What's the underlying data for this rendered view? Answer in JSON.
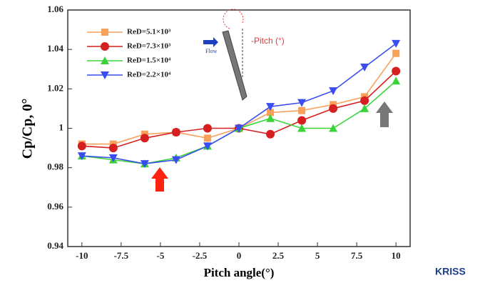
{
  "chart_data": {
    "type": "line",
    "x_label": "Pitch angle(°)",
    "y_label": "Cp/Cp, 0°",
    "x": [
      -10,
      -8,
      -6,
      -4,
      -2,
      0,
      2,
      4,
      6,
      8,
      10
    ],
    "series": [
      {
        "name": "ReD=5.1×10³",
        "color": "#f7a15a",
        "marker": "square",
        "values": [
          0.992,
          0.992,
          0.997,
          0.998,
          0.995,
          1.0,
          1.008,
          1.009,
          1.012,
          1.016,
          1.038
        ]
      },
      {
        "name": "ReD=7.3×10³",
        "color": "#d61f1f",
        "marker": "circle",
        "values": [
          0.991,
          0.99,
          0.995,
          0.998,
          1.0,
          1.0,
          0.997,
          1.004,
          1.01,
          1.014,
          1.029
        ]
      },
      {
        "name": "ReD=1.5×10⁴",
        "color": "#3ad43a",
        "marker": "triangle",
        "values": [
          0.986,
          0.984,
          0.982,
          0.985,
          0.991,
          1.0,
          1.005,
          1.0,
          1.0,
          1.01,
          1.024
        ]
      },
      {
        "name": "ReD=2.2×10⁴",
        "color": "#3a4ef0",
        "marker": "triangle-down",
        "values": [
          0.986,
          0.985,
          0.982,
          0.984,
          0.991,
          1.0,
          1.011,
          1.013,
          1.019,
          1.031,
          1.043
        ]
      }
    ],
    "xlim": [
      -10.9,
      10.9
    ],
    "ylim": [
      0.94,
      1.06
    ],
    "xticks": [
      -10,
      -7.5,
      -5,
      -2.5,
      0,
      2.5,
      5,
      7.5,
      10
    ],
    "yticks": [
      0.94,
      0.96,
      0.98,
      1,
      1.02,
      1.04,
      1.06
    ],
    "legend": "upper left",
    "annotations": [
      "Flow",
      "-Pitch (°)"
    ],
    "logo": "KRISS"
  }
}
